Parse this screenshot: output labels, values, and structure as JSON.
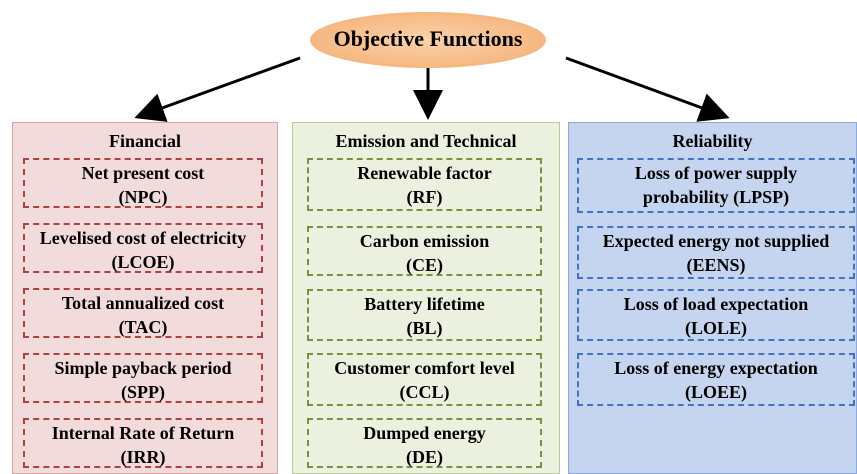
{
  "title": "Objective Functions",
  "columns": [
    {
      "header": "Financial",
      "items": [
        [
          "Net present cost",
          "(NPC)"
        ],
        [
          "Levelised cost of electricity",
          "(LCOE)"
        ],
        [
          "Total annualized cost",
          "(TAC)"
        ],
        [
          "Simple payback period",
          "(SPP)"
        ],
        [
          "Internal Rate of Return",
          "(IRR)"
        ]
      ]
    },
    {
      "header": "Emission and Technical",
      "items": [
        [
          "Renewable factor",
          "(RF)"
        ],
        [
          "Carbon emission",
          "(CE)"
        ],
        [
          "Battery lifetime",
          "(BL)"
        ],
        [
          "Customer comfort level",
          "(CCL)"
        ],
        [
          "Dumped energy",
          "(DE)"
        ]
      ]
    },
    {
      "header": "Reliability",
      "items": [
        [
          "Loss of power supply",
          "probability (LPSP)"
        ],
        [
          "Expected energy not supplied",
          "(EENS)"
        ],
        [
          "Loss of load expectation",
          "(LOLE)"
        ],
        [
          "Loss of energy expectation",
          "(LOEE)"
        ]
      ]
    }
  ]
}
